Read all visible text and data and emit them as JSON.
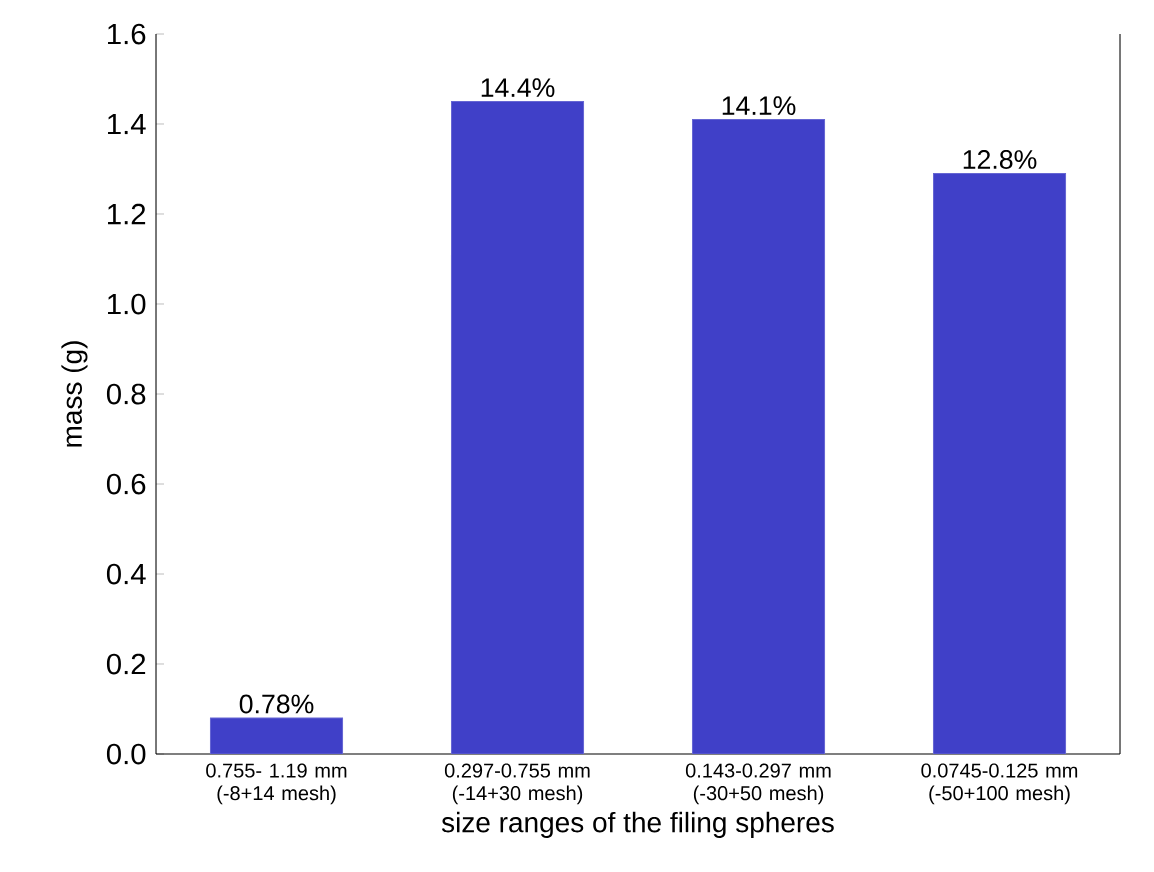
{
  "chart_data": {
    "type": "bar",
    "xlabel": "size ranges of the filing spheres",
    "ylabel": "mass (g)",
    "categories": [
      "0.755- 1.19 mm (-8+14 mesh)",
      "0.297-0.755 mm (-14+30 mesh)",
      "0.143-0.297 mm (-30+50 mesh)",
      "0.0745-0.125 mm (-50+100 mesh)"
    ],
    "values": [
      0.08,
      1.45,
      1.41,
      1.29
    ],
    "annotations": [
      {
        "text": "0.78%",
        "x": "0.755- 1.19 mm (-8+14 mesh)",
        "y": 0.08
      },
      {
        "text": "14.4%",
        "x": "0.297-0.755 mm (-14+30 mesh)",
        "y": 1.45
      },
      {
        "text": "14.1%",
        "x": "0.143-0.297 mm (-30+50 mesh)",
        "y": 1.41
      },
      {
        "text": "12.8%",
        "x": "0.0745-0.125 mm (-50+100 mesh)",
        "y": 1.29
      }
    ],
    "color": "#4040c8",
    "ylim": [
      0,
      1.6
    ],
    "yticks": [
      {
        "value": 0,
        "label": "0.0"
      },
      0.2,
      0.4,
      0.6,
      0.8,
      {
        "value": 1,
        "label": "1.0"
      },
      1.2,
      1.4,
      1.6
    ],
    "grid": false
  }
}
